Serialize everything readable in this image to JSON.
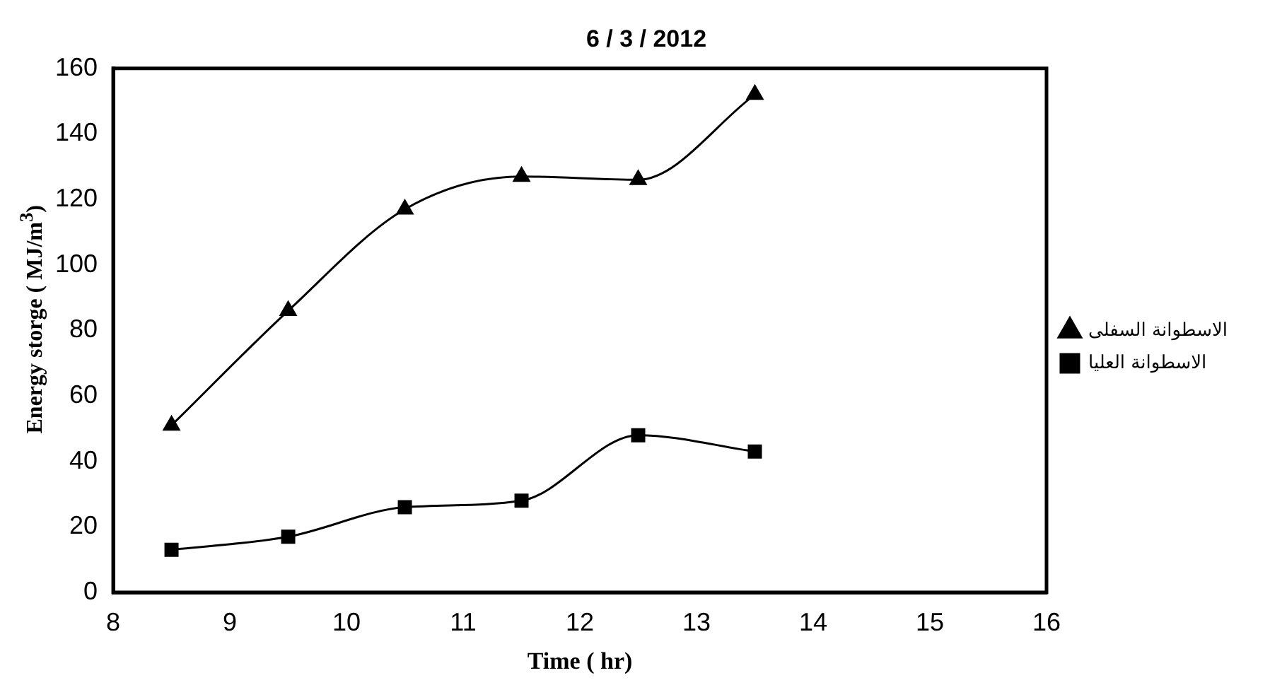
{
  "chart_data": {
    "type": "line",
    "title": "6 / 3 / 2012",
    "xlabel": "Time ( hr)",
    "ylabel": "Energy storge ( MJ/m$^{3}$)",
    "x": [
      8.5,
      9.5,
      10.5,
      11.5,
      12.5,
      13.5
    ],
    "series": [
      {
        "name": "الاسطوانة السفلى",
        "color": "#000000",
        "marker": "triangle",
        "values": [
          51,
          86,
          117,
          127,
          126,
          152
        ]
      },
      {
        "name": "الاسطوانة العليا",
        "color": "#000000",
        "marker": "square",
        "values": [
          13,
          17,
          26,
          28,
          48,
          43
        ]
      }
    ],
    "xlim": [
      8,
      16
    ],
    "xticks": [
      8,
      9,
      10,
      11,
      12,
      13,
      14,
      15,
      16
    ],
    "ylim": [
      0,
      160
    ],
    "yticks": [
      0,
      20,
      40,
      60,
      80,
      100,
      120,
      140,
      160
    ],
    "grid": false,
    "legend": "right"
  }
}
